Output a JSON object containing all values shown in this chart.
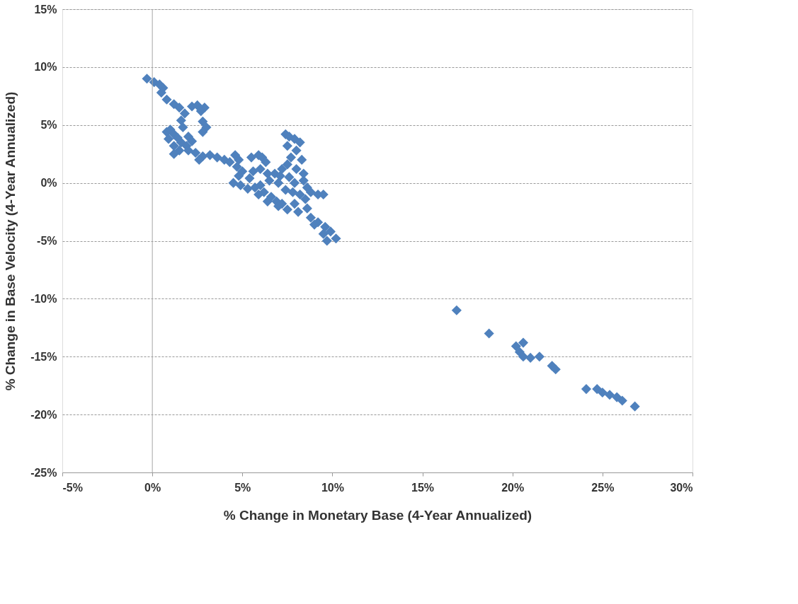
{
  "chart_data": {
    "type": "scatter",
    "xlabel": "% Change in Monetary Base (4-Year Annualized)",
    "ylabel": "% Change in Base Velocity (4-Year Annualized)",
    "xlim": [
      -5,
      30
    ],
    "ylim": [
      -25,
      15
    ],
    "xticks": [
      {
        "value": -5,
        "label": "-5%"
      },
      {
        "value": 0,
        "label": "0%"
      },
      {
        "value": 5,
        "label": "5%"
      },
      {
        "value": 10,
        "label": "10%"
      },
      {
        "value": 15,
        "label": "15%"
      },
      {
        "value": 20,
        "label": "20%"
      },
      {
        "value": 25,
        "label": "25%"
      },
      {
        "value": 30,
        "label": "30%"
      }
    ],
    "yticks": [
      {
        "value": -25,
        "label": "-25%"
      },
      {
        "value": -20,
        "label": "-20%"
      },
      {
        "value": -15,
        "label": "-15%"
      },
      {
        "value": -10,
        "label": "-10%"
      },
      {
        "value": -5,
        "label": "-5%"
      },
      {
        "value": 0,
        "label": "0%"
      },
      {
        "value": 5,
        "label": "5%"
      },
      {
        "value": 10,
        "label": "10%"
      },
      {
        "value": 15,
        "label": "15%"
      }
    ],
    "grid": "y",
    "marker": "diamond",
    "legend": false,
    "ref_lines": [
      {
        "axis": "x",
        "value": 0,
        "color": "#a6a6a6"
      }
    ],
    "series": [
      {
        "color": "#4f81bd",
        "x": [
          -0.3,
          0.1,
          0.4,
          0.6,
          0.5,
          0.8,
          1.2,
          1.5,
          1.8,
          2.2,
          2.5,
          2.9,
          2.7,
          1.6,
          1.7,
          2.8,
          3.0,
          2.8,
          0.8,
          1.0,
          1.2,
          0.9,
          1.4,
          1.6,
          1.2,
          1.5,
          1.2,
          1.9,
          2.0,
          2.2,
          2.0,
          2.4,
          2.8,
          2.6,
          3.2,
          3.6,
          4.0,
          4.3,
          4.6,
          4.8,
          4.7,
          5.0,
          4.8,
          4.5,
          4.9,
          5.3,
          5.4,
          5.6,
          5.5,
          5.9,
          6.1,
          6.3,
          6.0,
          6.4,
          6.8,
          6.5,
          6.0,
          6.2,
          6.6,
          6.9,
          7.2,
          7.5,
          7.0,
          6.4,
          5.9,
          5.7,
          7.4,
          7.6,
          7.9,
          8.2,
          7.5,
          8.0,
          8.3,
          7.7,
          7.5,
          8.0,
          8.4,
          7.6,
          7.9,
          8.4,
          8.6,
          7.2,
          7.1,
          7.0,
          7.4,
          7.8,
          8.2,
          8.8,
          9.2,
          9.5,
          8.5,
          7.9,
          8.1,
          8.6,
          8.8,
          9.2,
          9.6,
          9.9,
          10.2,
          9.7,
          9.5,
          9.0,
          16.9,
          18.7,
          20.2,
          20.6,
          20.4,
          20.6,
          21.0,
          21.5,
          22.2,
          22.4,
          24.1,
          24.7,
          25.0,
          25.4,
          25.8,
          26.1,
          26.8
        ],
        "values": [
          9.0,
          8.7,
          8.5,
          8.2,
          7.8,
          7.2,
          6.8,
          6.5,
          6.0,
          6.6,
          6.7,
          6.5,
          6.2,
          5.4,
          4.8,
          5.3,
          4.8,
          4.4,
          4.4,
          4.6,
          4.2,
          3.8,
          3.9,
          3.5,
          3.2,
          2.8,
          2.5,
          3.2,
          4.0,
          3.6,
          2.8,
          2.6,
          2.3,
          2.0,
          2.4,
          2.2,
          2.0,
          1.8,
          2.4,
          2.0,
          1.4,
          1.0,
          0.6,
          0.0,
          -0.2,
          -0.5,
          0.4,
          1.0,
          2.2,
          2.4,
          2.2,
          1.8,
          1.2,
          0.8,
          0.8,
          0.2,
          -0.2,
          -0.8,
          -1.2,
          -1.6,
          -1.8,
          -2.3,
          -2.0,
          -1.6,
          -1.0,
          -0.4,
          4.2,
          4.0,
          3.8,
          3.5,
          3.2,
          2.8,
          2.0,
          2.2,
          1.6,
          1.2,
          0.8,
          0.5,
          0.0,
          0.2,
          -0.4,
          1.2,
          0.6,
          0.0,
          -0.6,
          -0.8,
          -1.0,
          -0.8,
          -1.0,
          -1.0,
          -1.4,
          -1.8,
          -2.5,
          -2.2,
          -3.0,
          -3.4,
          -3.8,
          -4.2,
          -4.8,
          -5.0,
          -4.4,
          -3.6,
          -11.0,
          -13.0,
          -14.1,
          -13.8,
          -14.6,
          -15.0,
          -15.1,
          -15.0,
          -15.8,
          -16.1,
          -17.8,
          -17.8,
          -18.1,
          -18.3,
          -18.5,
          -18.8,
          -19.3
        ]
      }
    ]
  }
}
